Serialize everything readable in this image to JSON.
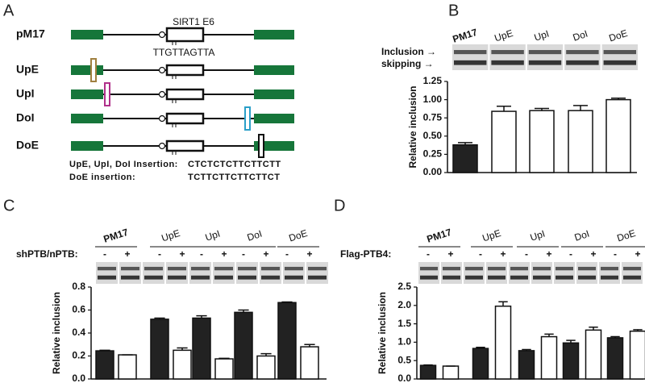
{
  "panels": [
    "A",
    "B",
    "C",
    "D"
  ],
  "diagram": {
    "construct": "pM17",
    "exon_label": "SIRT1 E6",
    "site": "TTGTTAGTTA",
    "variants": [
      {
        "name": "UpE",
        "color": "#a08040"
      },
      {
        "name": "UpI",
        "color": "#b0308a"
      },
      {
        "name": "DoI",
        "color": "#2a9fc8"
      },
      {
        "name": "DoE",
        "color": "#111111"
      }
    ],
    "insertions": [
      {
        "label": "UpE, UpI, DoI Insertion:",
        "sequence": "CTCTCTCTTCTTCTT"
      },
      {
        "label": "DoE insertion:",
        "sequence": "TCTTCTTCTTCTTCT"
      }
    ]
  },
  "chart_data": [
    {
      "type": "bar",
      "ylabel": "Relative inclusion",
      "gel_labels": [
        "Inclusion →",
        "skipping →"
      ],
      "categories": [
        "PM17",
        "UpE",
        "UpI",
        "DoI",
        "DoE"
      ],
      "category_colors": [
        "#111111",
        "#a08040",
        "#b0308a",
        "#2a9fc8",
        "#111111"
      ],
      "values": [
        0.38,
        0.84,
        0.85,
        0.85,
        1.0
      ],
      "errors": [
        0.03,
        0.07,
        0.03,
        0.07,
        0.02
      ],
      "colors": [
        "#222222",
        "#ffffff",
        "#ffffff",
        "#ffffff",
        "#ffffff"
      ],
      "ylim": [
        0,
        1.25
      ],
      "yticks": [
        {
          "value": 0,
          "label": "0.00"
        },
        {
          "value": 0.25,
          "label": "0.25"
        },
        {
          "value": 0.5,
          "label": "0.50"
        },
        {
          "value": 0.75,
          "label": "0.75"
        },
        {
          "value": 1,
          "label": "1.00"
        },
        {
          "value": 1.25,
          "label": "1.25"
        }
      ]
    },
    {
      "type": "bar",
      "ylabel": "Relative inclusion",
      "treatment_label": "shPTB/nPTB:",
      "categories": [
        "PM17",
        "UpE",
        "UpI",
        "DoI",
        "DoE"
      ],
      "category_colors": [
        "#111111",
        "#a08040",
        "#b0308a",
        "#2a9fc8",
        "#111111"
      ],
      "series": [
        {
          "name": "-",
          "color": "#222222",
          "values": [
            0.245,
            0.52,
            0.53,
            0.58,
            0.665
          ],
          "errors": [
            0.005,
            0.01,
            0.02,
            0.02,
            0.005
          ]
        },
        {
          "name": "+",
          "color": "#ffffff",
          "values": [
            0.21,
            0.25,
            0.175,
            0.2,
            0.28
          ],
          "errors": [
            0,
            0.02,
            0.005,
            0.02,
            0.02
          ]
        }
      ],
      "ylim": [
        0,
        0.8
      ],
      "yticks": [
        {
          "value": 0,
          "label": "0.0"
        },
        0.2,
        0.4,
        0.6,
        0.8
      ]
    },
    {
      "type": "bar",
      "ylabel": "Relative inclusion",
      "treatment_label": "Flag-PTB4:",
      "categories": [
        "PM17",
        "UpE",
        "UpI",
        "DoI",
        "DoE"
      ],
      "category_colors": [
        "#111111",
        "#a08040",
        "#b0308a",
        "#2a9fc8",
        "#111111"
      ],
      "series": [
        {
          "name": "-",
          "color": "#222222",
          "values": [
            0.37,
            0.83,
            0.77,
            0.98,
            1.12
          ],
          "errors": [
            0.01,
            0.03,
            0.03,
            0.07,
            0.03
          ]
        },
        {
          "name": "+",
          "color": "#ffffff",
          "values": [
            0.35,
            1.98,
            1.15,
            1.33,
            1.3
          ],
          "errors": [
            0,
            0.12,
            0.07,
            0.08,
            0.04
          ]
        }
      ],
      "ylim": [
        0,
        2.5
      ],
      "yticks": [
        {
          "value": 0,
          "label": "0.0"
        },
        0.5,
        {
          "value": 1,
          "label": "1.0"
        },
        1.5,
        {
          "value": 2,
          "label": "2.0"
        },
        2.5
      ]
    }
  ]
}
